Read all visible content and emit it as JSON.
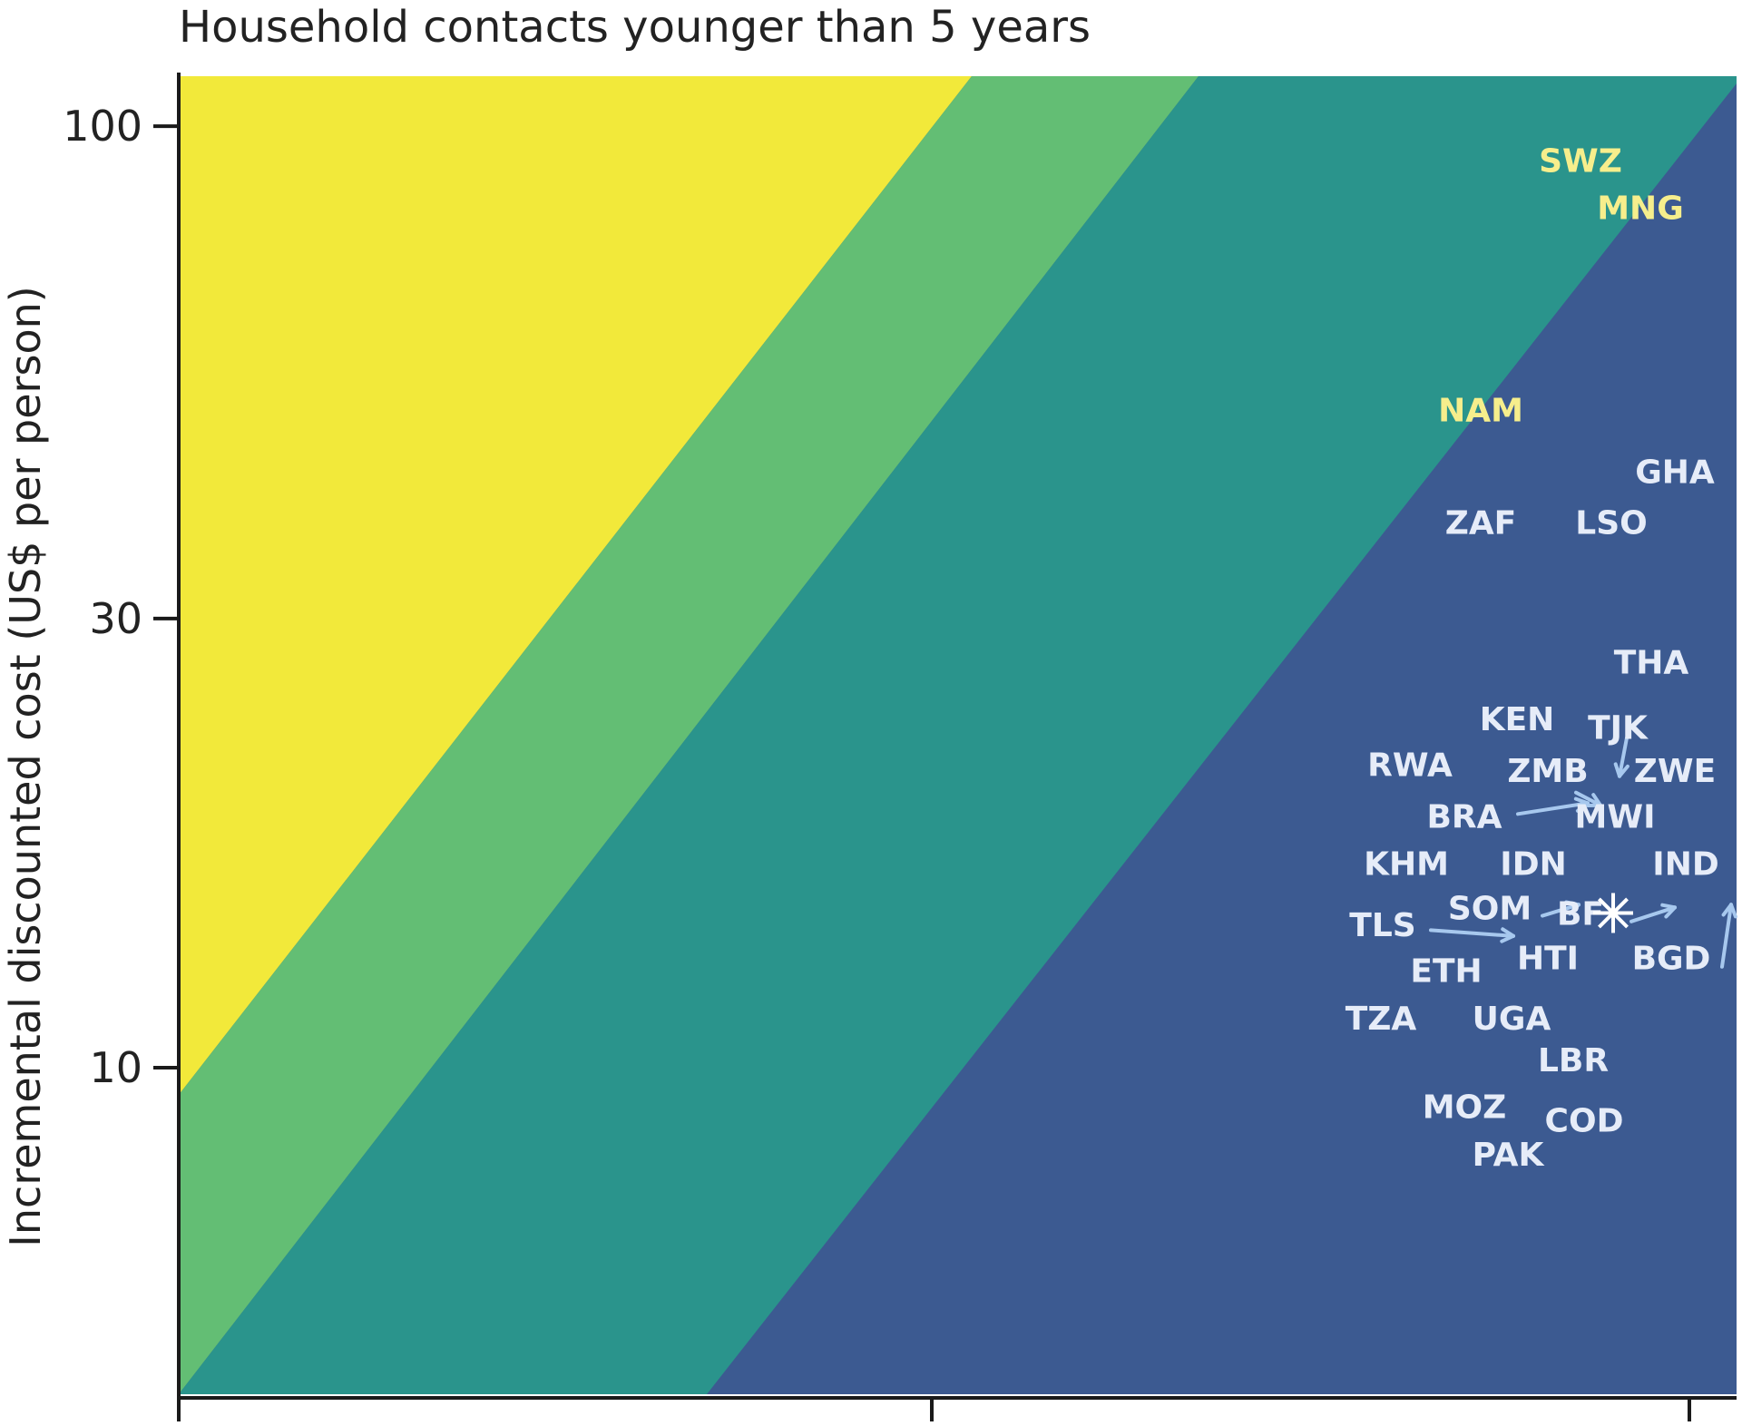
{
  "chart_data": {
    "type": "scatter",
    "title": "Household contacts younger than 5 years",
    "ylabel": "Incremental discounted cost (US$ per person)",
    "yscale": "log",
    "ylim": [
      4.5,
      113
    ],
    "yticks": [
      {
        "value": 100,
        "label": "100"
      },
      {
        "value": 30,
        "label": "30"
      },
      {
        "value": 10,
        "label": "10"
      }
    ],
    "band_colors": [
      "#f2e93a",
      "#63be74",
      "#2a948c",
      "#3c5a91"
    ],
    "label_colors": {
      "light": "#f6ee8c",
      "dark": "#e6ecf8",
      "arrow": "#a7c8ee"
    },
    "points": [
      {
        "label": "SWZ",
        "y": 92,
        "tone": "light"
      },
      {
        "label": "MNG",
        "y": 82,
        "tone": "light"
      },
      {
        "label": "NAM",
        "y": 50,
        "tone": "light"
      },
      {
        "label": "GHA",
        "y": 43,
        "tone": "dark"
      },
      {
        "label": "ZAF",
        "y": 38,
        "tone": "dark"
      },
      {
        "label": "LSO",
        "y": 38,
        "tone": "dark"
      },
      {
        "label": "THA",
        "y": 27,
        "tone": "dark"
      },
      {
        "label": "KEN",
        "y": 23.5,
        "tone": "dark"
      },
      {
        "label": "TJK",
        "y": 23,
        "tone": "dark"
      },
      {
        "label": "RWA",
        "y": 21,
        "tone": "dark"
      },
      {
        "label": "ZMB",
        "y": 20.7,
        "tone": "dark"
      },
      {
        "label": "ZWE",
        "y": 20.7,
        "tone": "dark"
      },
      {
        "label": "BRA",
        "y": 18.5,
        "tone": "dark"
      },
      {
        "label": "MWI",
        "y": 18.5,
        "tone": "dark"
      },
      {
        "label": "KHM",
        "y": 16.5,
        "tone": "dark"
      },
      {
        "label": "IDN",
        "y": 16.5,
        "tone": "dark"
      },
      {
        "label": "IND",
        "y": 16.5,
        "tone": "dark"
      },
      {
        "label": "SOM",
        "y": 14.8,
        "tone": "dark"
      },
      {
        "label": "BF",
        "y": 14.6,
        "tone": "dark"
      },
      {
        "label": "TLS",
        "y": 14.2,
        "tone": "dark"
      },
      {
        "label": "HTI",
        "y": 13.1,
        "tone": "dark"
      },
      {
        "label": "BGD",
        "y": 13.1,
        "tone": "dark"
      },
      {
        "label": "ETH",
        "y": 12.7,
        "tone": "dark"
      },
      {
        "label": "TZA",
        "y": 11.3,
        "tone": "dark"
      },
      {
        "label": "UGA",
        "y": 11.3,
        "tone": "dark"
      },
      {
        "label": "LBR",
        "y": 10.2,
        "tone": "dark"
      },
      {
        "label": "MOZ",
        "y": 9.1,
        "tone": "dark"
      },
      {
        "label": "COD",
        "y": 8.8,
        "tone": "dark"
      },
      {
        "label": "PAK",
        "y": 8.1,
        "tone": "dark"
      }
    ]
  }
}
